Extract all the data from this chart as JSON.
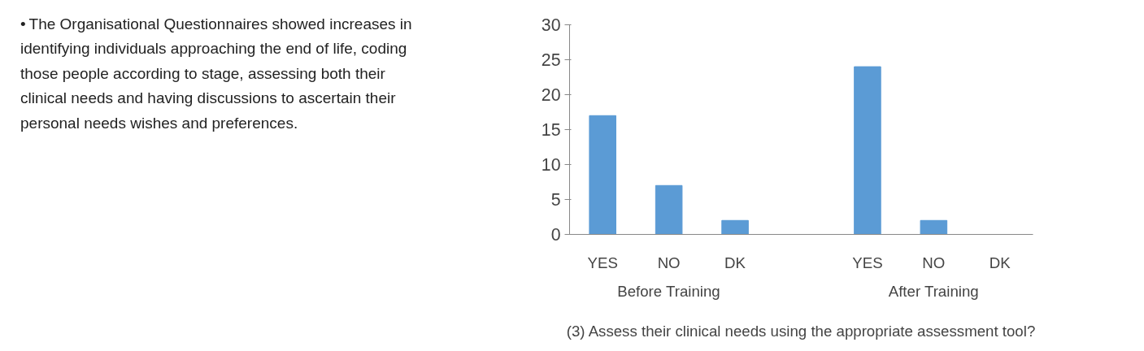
{
  "chart_data": {
    "type": "bar",
    "categories": [
      "YES",
      "NO",
      "DK",
      null,
      "YES",
      "NO",
      "DK"
    ],
    "values": [
      17,
      7,
      2,
      null,
      24,
      2,
      0
    ],
    "color": "#5b9bd5",
    "xlabel": "(3) Assess their clinical needs using the appropriate assessment tool?",
    "annotations": [
      "Before Training",
      "After Training",
      "•\tThe Organisational Questionnaires showed increases in identifying individuals approaching the end of life, coding those people according to stage, assessing both their clinical needs and having discussions to ascertain their personal needs wishes and preferences."
    ],
    "ylim": [
      0,
      30
    ],
    "yticks": [
      0,
      5,
      10,
      15,
      20,
      25,
      30
    ],
    "grid": false
  }
}
